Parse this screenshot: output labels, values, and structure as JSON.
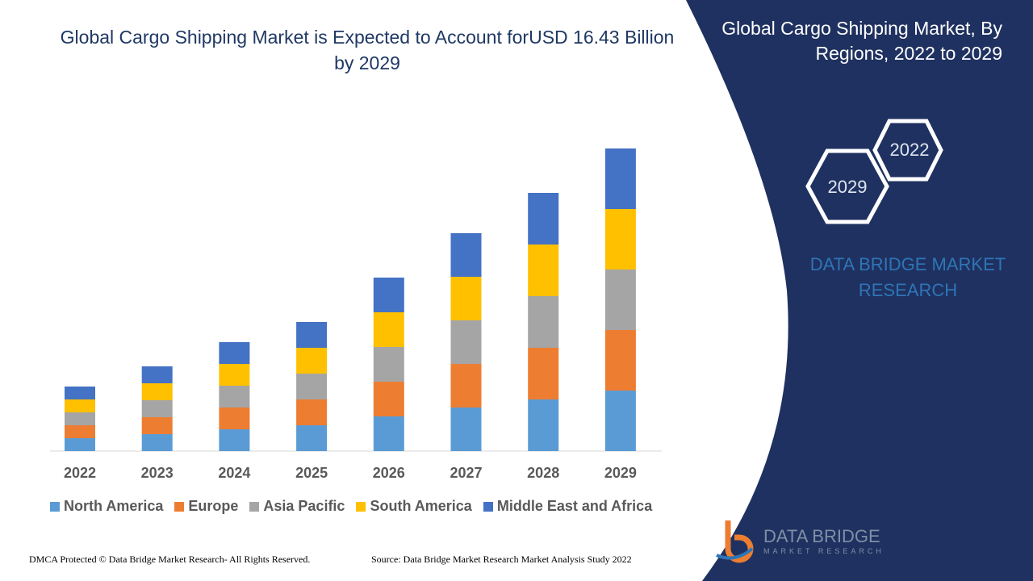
{
  "title": "Global Cargo Shipping Market is Expected to Account forUSD 16.43 Billion by 2029",
  "side_panel": {
    "title": "Global Cargo Shipping Market, By Regions, 2022 to 2029",
    "hex_back": "2022",
    "hex_front": "2029",
    "brand": "DATA BRIDGE MARKET RESEARCH",
    "bg_color": "#1f3160"
  },
  "footer": {
    "left": "DMCA Protected © Data Bridge Market Research- All Rights Reserved.",
    "right": "Source: Data Bridge Market Research Market Analysis Study 2022"
  },
  "logo": {
    "name": "DATA BRIDGE",
    "sub": "MARKET RESEARCH"
  },
  "chart_data": {
    "type": "bar",
    "stacked": true,
    "title": "",
    "xlabel": "",
    "ylabel": "",
    "grid": false,
    "legend": "bottom",
    "categories": [
      "2022",
      "2023",
      "2024",
      "2025",
      "2026",
      "2027",
      "2028",
      "2029"
    ],
    "series": [
      {
        "name": "North America",
        "color": "#5b9bd5",
        "values": [
          16,
          21,
          27,
          32,
          43,
          54,
          64,
          75
        ]
      },
      {
        "name": "Europe",
        "color": "#ed7d31",
        "values": [
          16,
          21,
          27,
          32,
          43,
          54,
          64,
          75
        ]
      },
      {
        "name": "Asia Pacific",
        "color": "#a5a5a5",
        "values": [
          16,
          21,
          27,
          32,
          43,
          54,
          64,
          75
        ]
      },
      {
        "name": "South America",
        "color": "#ffc000",
        "values": [
          16,
          21,
          27,
          32,
          43,
          54,
          64,
          75
        ]
      },
      {
        "name": "Middle East and Africa",
        "color": "#4472c4",
        "values": [
          16,
          21,
          27,
          32,
          43,
          54,
          64,
          75
        ]
      }
    ]
  }
}
